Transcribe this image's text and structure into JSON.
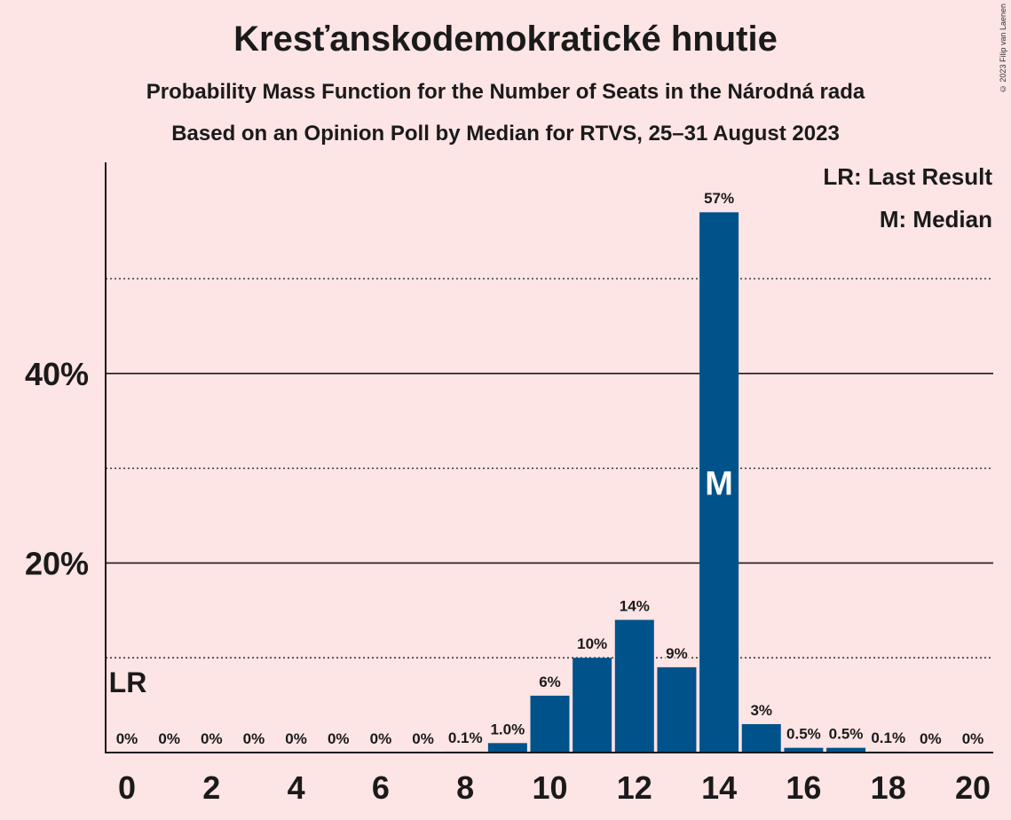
{
  "title": "Kresťanskodemokratické hnutie",
  "subtitle_1": "Probability Mass Function for the Number of Seats in the Národná rada",
  "subtitle_2": "Based on an Opinion Poll by Median for RTVS, 25–31 August 2023",
  "copyright": "© 2023 Filip van Laenen",
  "legend": {
    "last_result": "LR: Last Result",
    "median": "M: Median"
  },
  "colors": {
    "background": "#fde4e5",
    "bar": "#00528a",
    "text": "#1a1a1a"
  },
  "chart_data": {
    "type": "bar",
    "categories": [
      0,
      1,
      2,
      3,
      4,
      5,
      6,
      7,
      8,
      9,
      10,
      11,
      12,
      13,
      14,
      15,
      16,
      17,
      18,
      19,
      20
    ],
    "values": [
      0,
      0,
      0,
      0,
      0,
      0,
      0,
      0,
      0.1,
      1.0,
      6,
      10,
      14,
      9,
      57,
      3,
      0.5,
      0.5,
      0.1,
      0,
      0
    ],
    "data_labels": [
      "0%",
      "0%",
      "0%",
      "0%",
      "0%",
      "0%",
      "0%",
      "0%",
      "0.1%",
      "1.0%",
      "6%",
      "10%",
      "14%",
      "9%",
      "57%",
      "3%",
      "0.5%",
      "0.5%",
      "0.1%",
      "0%",
      "0%"
    ],
    "x_ticks": [
      "0",
      "2",
      "4",
      "6",
      "8",
      "10",
      "12",
      "14",
      "16",
      "18",
      "20"
    ],
    "y_ticks": [
      "20%",
      "40%"
    ],
    "ylim": [
      0,
      62
    ],
    "gridlines_solid": [
      20,
      40
    ],
    "gridlines_dotted": [
      10,
      30,
      50
    ],
    "last_result_seat": 0,
    "last_result_marker": "LR",
    "median_seat": 14,
    "median_marker": "M"
  }
}
